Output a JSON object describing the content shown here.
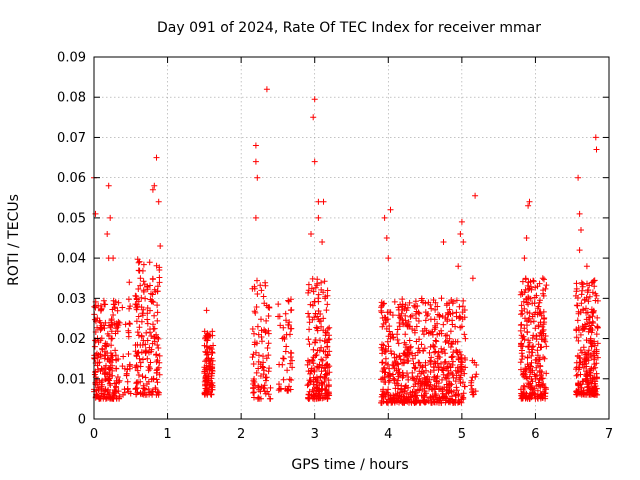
{
  "chart_data": {
    "type": "scatter",
    "title": "Day 091 of 2024, Rate Of TEC Index for receiver mmar",
    "xlabel": "GPS time / hours",
    "ylabel": "ROTI / TECUs",
    "xlim": [
      0,
      7
    ],
    "ylim": [
      0,
      0.09
    ],
    "x_ticks": [
      "0",
      "1",
      "2",
      "3",
      "4",
      "5",
      "6",
      "7"
    ],
    "y_ticks": [
      "0",
      "0.01",
      "0.02",
      "0.03",
      "0.04",
      "0.05",
      "0.06",
      "0.07",
      "0.08",
      "0.09"
    ],
    "grid": true,
    "marker": "+",
    "marker_color": "#ff0000",
    "clusters": [
      {
        "x_range": [
          0.0,
          0.35
        ],
        "y_range": [
          0.005,
          0.03
        ],
        "count": 220
      },
      {
        "x_range": [
          0.38,
          0.5
        ],
        "y_range": [
          0.006,
          0.03
        ],
        "count": 30
      },
      {
        "x_range": [
          0.55,
          0.9
        ],
        "y_range": [
          0.006,
          0.04
        ],
        "count": 180
      },
      {
        "x_range": [
          1.5,
          1.62
        ],
        "y_range": [
          0.006,
          0.022
        ],
        "count": 110
      },
      {
        "x_range": [
          2.15,
          2.4
        ],
        "y_range": [
          0.005,
          0.035
        ],
        "count": 90
      },
      {
        "x_range": [
          2.5,
          2.7
        ],
        "y_range": [
          0.007,
          0.03
        ],
        "count": 50
      },
      {
        "x_range": [
          2.9,
          3.2
        ],
        "y_range": [
          0.005,
          0.035
        ],
        "count": 200
      },
      {
        "x_range": [
          3.9,
          5.05
        ],
        "y_range": [
          0.004,
          0.03
        ],
        "count": 650
      },
      {
        "x_range": [
          5.12,
          5.2
        ],
        "y_range": [
          0.006,
          0.015
        ],
        "count": 15
      },
      {
        "x_range": [
          5.8,
          6.15
        ],
        "y_range": [
          0.005,
          0.035
        ],
        "count": 260
      },
      {
        "x_range": [
          6.55,
          6.85
        ],
        "y_range": [
          0.006,
          0.035
        ],
        "count": 260
      }
    ],
    "outliers": [
      {
        "x": 0.0,
        "y": 0.06
      },
      {
        "x": 0.02,
        "y": 0.051
      },
      {
        "x": 0.2,
        "y": 0.058
      },
      {
        "x": 0.22,
        "y": 0.05
      },
      {
        "x": 0.18,
        "y": 0.046
      },
      {
        "x": 0.2,
        "y": 0.04
      },
      {
        "x": 0.26,
        "y": 0.04
      },
      {
        "x": 0.48,
        "y": 0.034
      },
      {
        "x": 0.85,
        "y": 0.065
      },
      {
        "x": 0.82,
        "y": 0.058
      },
      {
        "x": 0.88,
        "y": 0.054
      },
      {
        "x": 0.9,
        "y": 0.043
      },
      {
        "x": 0.8,
        "y": 0.057
      },
      {
        "x": 1.53,
        "y": 0.027
      },
      {
        "x": 2.2,
        "y": 0.068
      },
      {
        "x": 2.2,
        "y": 0.064
      },
      {
        "x": 2.22,
        "y": 0.06
      },
      {
        "x": 2.2,
        "y": 0.05
      },
      {
        "x": 2.35,
        "y": 0.082
      },
      {
        "x": 3.0,
        "y": 0.0795
      },
      {
        "x": 2.98,
        "y": 0.075
      },
      {
        "x": 3.0,
        "y": 0.064
      },
      {
        "x": 3.05,
        "y": 0.054
      },
      {
        "x": 3.12,
        "y": 0.054
      },
      {
        "x": 3.05,
        "y": 0.05
      },
      {
        "x": 2.95,
        "y": 0.046
      },
      {
        "x": 3.1,
        "y": 0.044
      },
      {
        "x": 3.95,
        "y": 0.05
      },
      {
        "x": 4.03,
        "y": 0.052
      },
      {
        "x": 3.98,
        "y": 0.045
      },
      {
        "x": 4.0,
        "y": 0.04
      },
      {
        "x": 4.75,
        "y": 0.044
      },
      {
        "x": 5.0,
        "y": 0.049
      },
      {
        "x": 4.98,
        "y": 0.046
      },
      {
        "x": 5.02,
        "y": 0.044
      },
      {
        "x": 4.95,
        "y": 0.038
      },
      {
        "x": 5.18,
        "y": 0.0555
      },
      {
        "x": 5.15,
        "y": 0.035
      },
      {
        "x": 5.9,
        "y": 0.053
      },
      {
        "x": 5.92,
        "y": 0.054
      },
      {
        "x": 5.88,
        "y": 0.045
      },
      {
        "x": 5.85,
        "y": 0.04
      },
      {
        "x": 6.1,
        "y": 0.035
      },
      {
        "x": 6.58,
        "y": 0.06
      },
      {
        "x": 6.6,
        "y": 0.051
      },
      {
        "x": 6.62,
        "y": 0.047
      },
      {
        "x": 6.6,
        "y": 0.042
      },
      {
        "x": 6.82,
        "y": 0.07
      },
      {
        "x": 6.83,
        "y": 0.067
      },
      {
        "x": 6.7,
        "y": 0.038
      }
    ]
  }
}
